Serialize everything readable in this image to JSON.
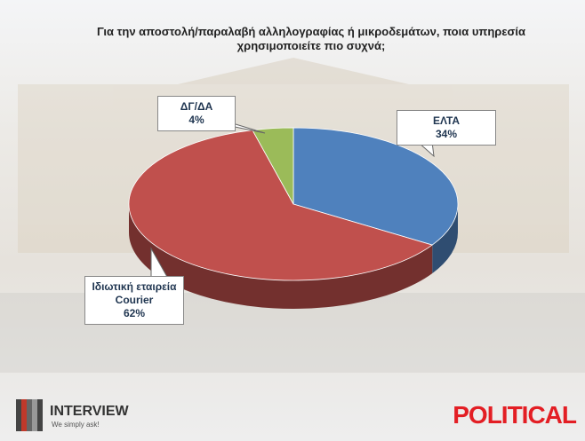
{
  "chart_data": {
    "type": "pie",
    "title": "Για την αποστολή/παραλαβή αλληλογραφίας ή μικροδεμάτων, ποια υπηρεσία χρησιμοποιείτε πιο συχνά;",
    "categories": [
      "ΕΛΤΑ",
      "Ιδιωτική εταιρεία Courier",
      "ΔΓ/ΔΑ"
    ],
    "values": [
      34,
      62,
      4
    ],
    "value_labels": [
      "34%",
      "62%",
      "4%"
    ],
    "colors": [
      "#4f81bd",
      "#c0504d",
      "#9bbb59"
    ]
  },
  "brand": {
    "left": "INTERVIEW",
    "tagline": "We simply ask!",
    "right": "POLITICAL"
  }
}
